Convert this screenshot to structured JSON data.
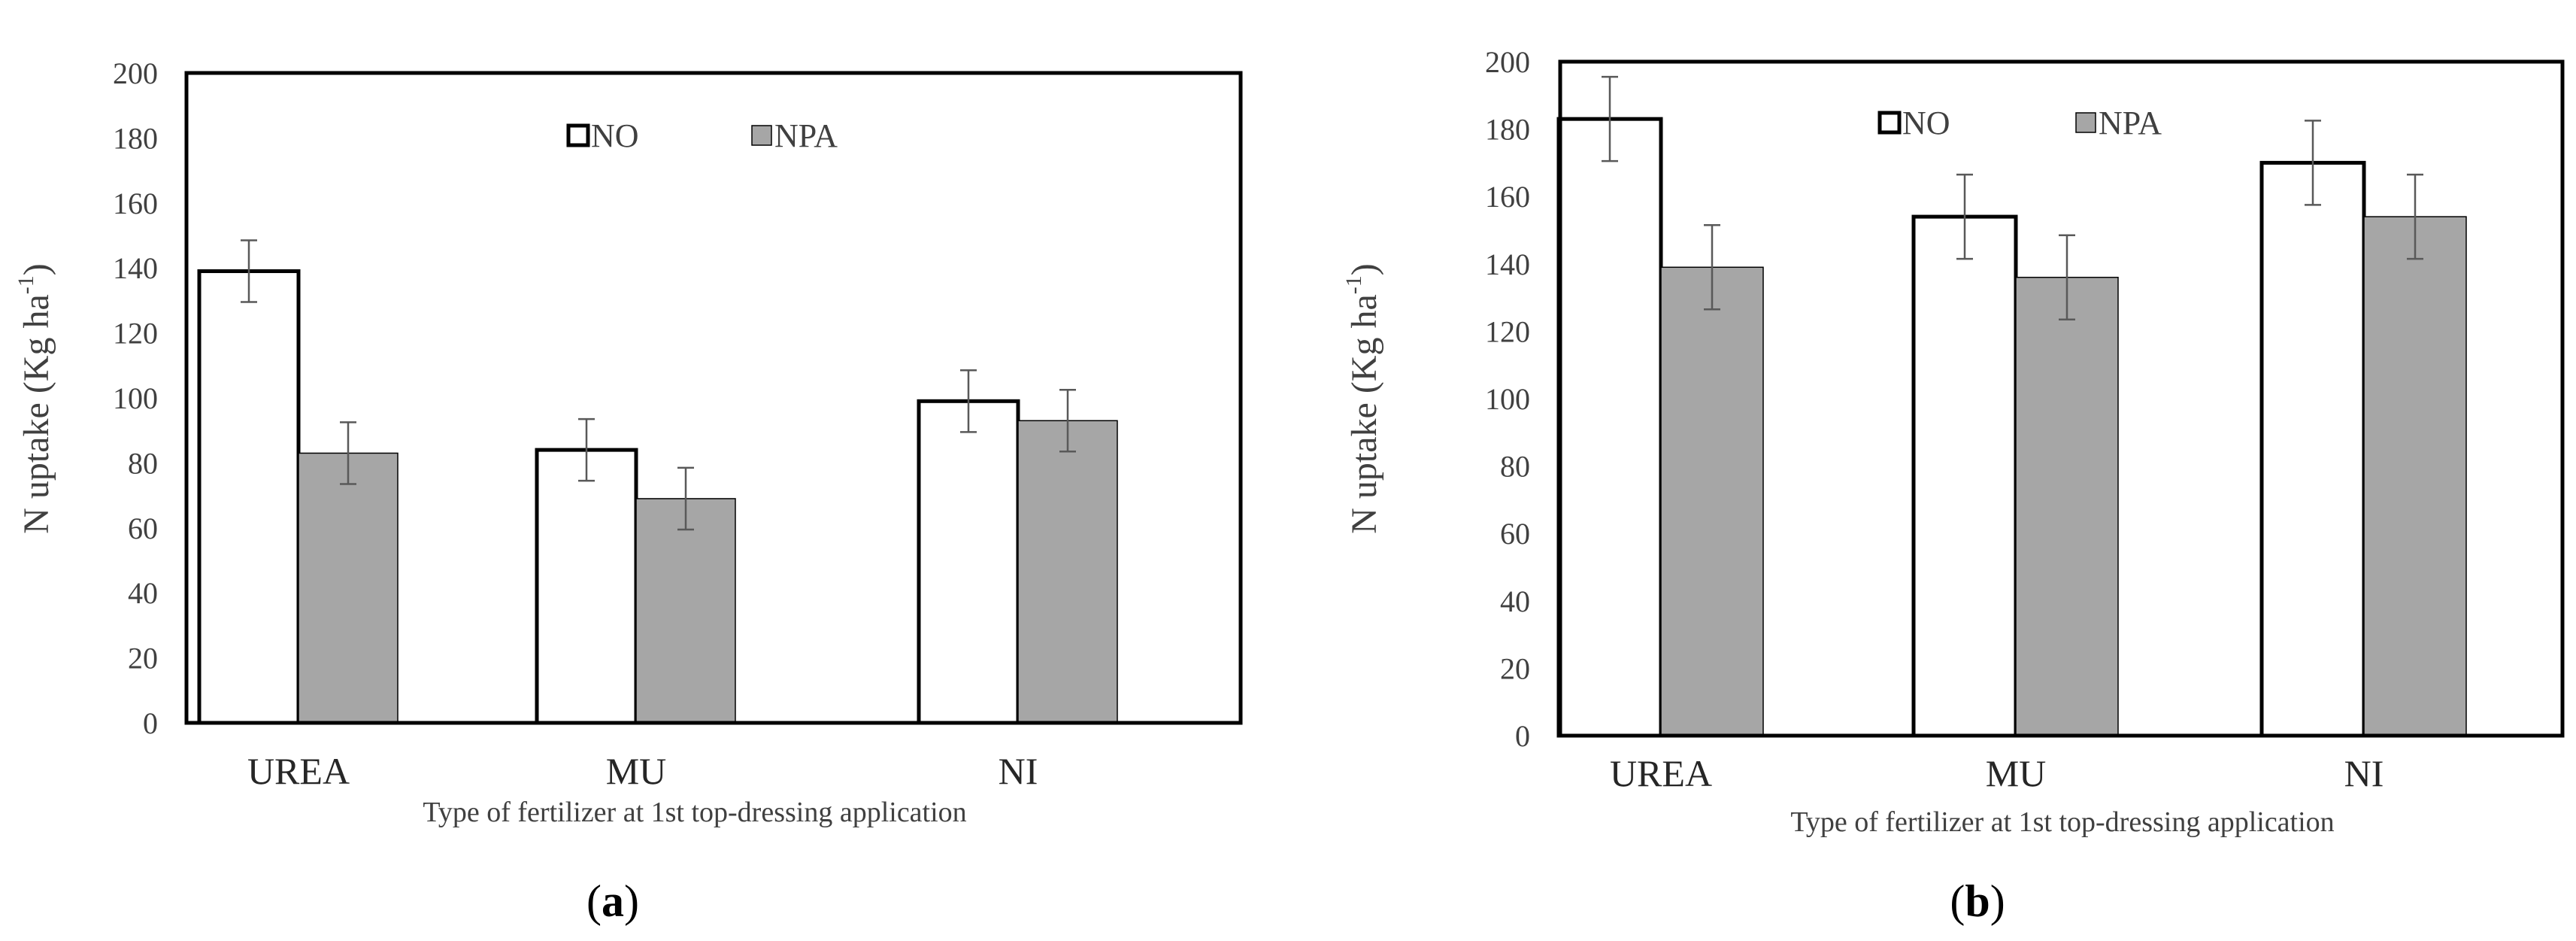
{
  "chart_data": [
    {
      "type": "bar",
      "panel_label": "a",
      "categories": [
        "UREA",
        "MU",
        "NI"
      ],
      "series": [
        {
          "name": "NO",
          "values": [
            139,
            84,
            99
          ],
          "errors": [
            9.5,
            9.5,
            9.5
          ],
          "color": "#ffffff"
        },
        {
          "name": "NPA",
          "values": [
            83,
            69,
            93
          ],
          "errors": [
            9.5,
            9.5,
            9.5
          ],
          "color": "#a6a6a6"
        }
      ],
      "title": "",
      "xlabel": "Type of fertilizer at 1st top-dressing application",
      "ylabel": "N uptake (Kg ha",
      "ylabel_sup": "-1",
      "ylabel_end": ")",
      "ylim": [
        0,
        200
      ],
      "yticks": [
        0,
        20,
        40,
        60,
        80,
        100,
        120,
        140,
        160,
        180,
        200
      ],
      "legend_position": "top-center",
      "grid": false
    },
    {
      "type": "bar",
      "panel_label": "b",
      "categories": [
        "UREA",
        "MU",
        "NI"
      ],
      "series": [
        {
          "name": "NO",
          "values": [
            183,
            154,
            170
          ],
          "errors": [
            12.5,
            12.5,
            12.5
          ],
          "color": "#ffffff"
        },
        {
          "name": "NPA",
          "values": [
            139,
            136,
            154
          ],
          "errors": [
            12.5,
            12.5,
            12.5
          ],
          "color": "#a6a6a6"
        }
      ],
      "title": "",
      "xlabel": "Type of fertilizer at 1st top-dressing application",
      "ylabel": "N uptake (Kg ha",
      "ylabel_sup": "-1",
      "ylabel_end": ")",
      "ylim": [
        0,
        200
      ],
      "yticks": [
        0,
        20,
        40,
        60,
        80,
        100,
        120,
        140,
        160,
        180,
        200
      ],
      "legend_position": "top-center",
      "grid": false
    }
  ]
}
